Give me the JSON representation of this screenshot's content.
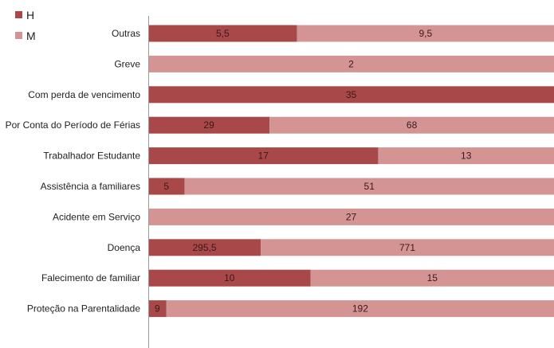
{
  "chart_data": {
    "type": "bar",
    "orientation": "horizontal",
    "stacking": "percent",
    "categories": [
      "Outras",
      "Greve",
      "Com perda de vencimento",
      "Por Conta do Período de Férias",
      "Trabalhador Estudante",
      "Assistência a familiares",
      "Acidente em Serviço",
      "Doença",
      "Falecimento de familiar",
      "Proteção na Parentalidade"
    ],
    "series": [
      {
        "name": "H",
        "color": "#a84848",
        "values": [
          5.5,
          0,
          35,
          29,
          17,
          5,
          0,
          295.5,
          10,
          9
        ],
        "labels": [
          "5,5",
          "",
          "35",
          "29",
          "17",
          "5",
          "",
          "295,5",
          "10",
          "9"
        ]
      },
      {
        "name": "M",
        "color": "#d49494",
        "values": [
          9.5,
          2,
          0,
          68,
          13,
          51,
          27,
          771,
          15,
          192
        ],
        "labels": [
          "9,5",
          "2",
          "",
          "68",
          "13",
          "51",
          "27",
          "771",
          "15",
          "192"
        ]
      }
    ],
    "legend": "top-left",
    "grid": false
  }
}
